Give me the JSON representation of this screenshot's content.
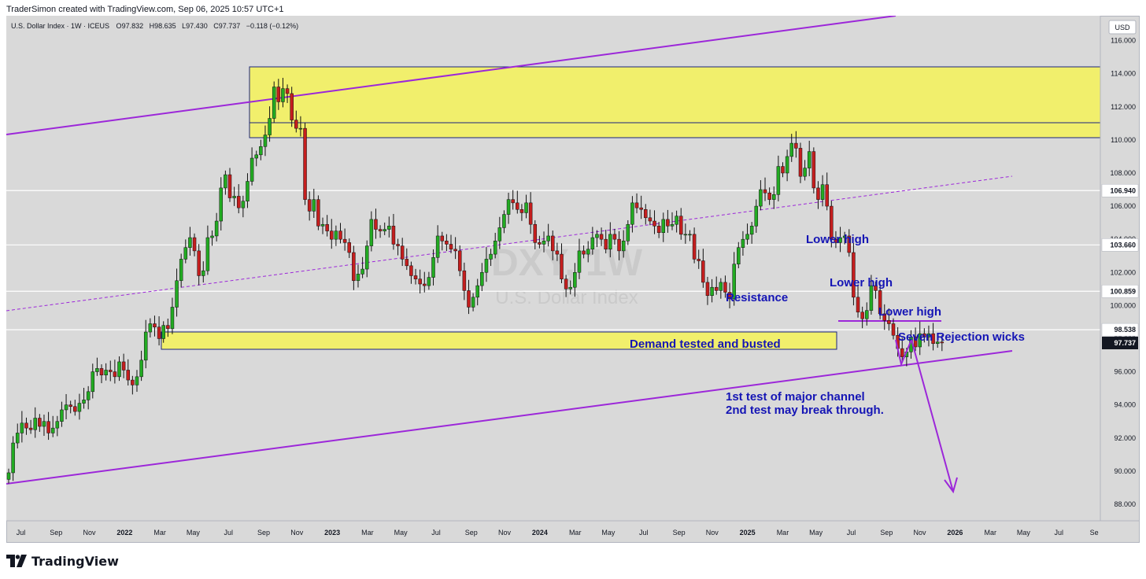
{
  "header": {
    "attribution": "TraderSimon created with TradingView.com, Sep 06, 2025 10:57 UTC+1"
  },
  "legend": {
    "title": "U.S. Dollar Index · 1W · ICEUS",
    "open_label": "O",
    "open": "97.832",
    "high_label": "H",
    "high": "98.635",
    "low_label": "L",
    "low": "97.430",
    "close_label": "C",
    "close": "97.737",
    "change": "−0.118 (−0.12%)"
  },
  "watermark": {
    "symbol": "DXY, 1W",
    "name": "U.S. Dollar Index"
  },
  "currency_badge": "USD",
  "footer": {
    "brand": "TradingView"
  },
  "colors": {
    "up": "#22ab22",
    "down": "#c41e1e",
    "channel": "#9c27d9",
    "zone_fill": "#f5f258",
    "zone_border": "#1a237e",
    "annotation_text": "#1515b5",
    "last_price_badge": "#131722"
  },
  "chart_data": {
    "type": "candlestick",
    "timeframe": "1W",
    "ylim": [
      87,
      117.5
    ],
    "y_ticks": [
      88,
      90,
      92,
      94,
      96,
      98,
      100,
      102,
      104,
      106,
      108,
      110,
      112,
      114,
      116
    ],
    "x_ticks": [
      {
        "t": 2021.5,
        "label": "Jul"
      },
      {
        "t": 2021.67,
        "label": "Sep"
      },
      {
        "t": 2021.83,
        "label": "Nov"
      },
      {
        "t": 2022.0,
        "label": "2022"
      },
      {
        "t": 2022.17,
        "label": "Mar"
      },
      {
        "t": 2022.33,
        "label": "May"
      },
      {
        "t": 2022.5,
        "label": "Jul"
      },
      {
        "t": 2022.67,
        "label": "Sep"
      },
      {
        "t": 2022.83,
        "label": "Nov"
      },
      {
        "t": 2023.0,
        "label": "2023"
      },
      {
        "t": 2023.17,
        "label": "Mar"
      },
      {
        "t": 2023.33,
        "label": "May"
      },
      {
        "t": 2023.5,
        "label": "Jul"
      },
      {
        "t": 2023.67,
        "label": "Sep"
      },
      {
        "t": 2023.83,
        "label": "Nov"
      },
      {
        "t": 2024.0,
        "label": "2024"
      },
      {
        "t": 2024.17,
        "label": "Mar"
      },
      {
        "t": 2024.33,
        "label": "May"
      },
      {
        "t": 2024.5,
        "label": "Jul"
      },
      {
        "t": 2024.67,
        "label": "Sep"
      },
      {
        "t": 2024.83,
        "label": "Nov"
      },
      {
        "t": 2025.0,
        "label": "2025"
      },
      {
        "t": 2025.17,
        "label": "Mar"
      },
      {
        "t": 2025.33,
        "label": "May"
      },
      {
        "t": 2025.5,
        "label": "Jul"
      },
      {
        "t": 2025.67,
        "label": "Sep"
      },
      {
        "t": 2025.83,
        "label": "Nov"
      },
      {
        "t": 2026.0,
        "label": "2026"
      },
      {
        "t": 2026.17,
        "label": "Mar"
      },
      {
        "t": 2026.33,
        "label": "May"
      },
      {
        "t": 2026.5,
        "label": "Jul"
      },
      {
        "t": 2026.67,
        "label": "Se"
      }
    ],
    "x_range": [
      2021.43,
      2026.7
    ],
    "closes": [
      89.9,
      91.7,
      92.3,
      92.9,
      92.6,
      92.5,
      93.2,
      92.7,
      93.0,
      92.3,
      92.6,
      93.0,
      93.7,
      94.0,
      93.9,
      93.6,
      94.1,
      94.3,
      94.8,
      96.0,
      96.2,
      95.8,
      96.1,
      96.0,
      95.7,
      96.6,
      96.1,
      95.5,
      95.2,
      95.7,
      96.7,
      98.4,
      98.9,
      98.7,
      98.0,
      98.8,
      98.6,
      99.9,
      101.5,
      102.8,
      103.5,
      104.1,
      103.3,
      101.8,
      102.1,
      104.1,
      104.2,
      105.1,
      107.1,
      107.9,
      106.5,
      106.6,
      105.9,
      106.3,
      107.5,
      108.9,
      109.1,
      109.6,
      110.3,
      111.3,
      113.2,
      112.3,
      113.1,
      112.8,
      111.2,
      110.7,
      110.7,
      106.4,
      105.7,
      106.4,
      104.8,
      104.9,
      104.5,
      104.0,
      104.5,
      104.0,
      103.8,
      103.2,
      101.5,
      101.9,
      102.2,
      103.6,
      105.2,
      104.6,
      104.5,
      104.6,
      104.8,
      103.7,
      103.6,
      102.8,
      102.4,
      101.8,
      101.6,
      101.3,
      101.2,
      101.7,
      102.9,
      104.2,
      103.9,
      103.7,
      103.4,
      103.3,
      102.1,
      100.9,
      99.9,
      100.5,
      101.2,
      102.0,
      102.8,
      103.1,
      103.9,
      104.7,
      105.5,
      106.4,
      106.2,
      105.8,
      105.6,
      106.2,
      104.9,
      103.8,
      103.7,
      103.9,
      104.2,
      103.3,
      103.1,
      101.6,
      101.0,
      101.1,
      102.0,
      103.3,
      103.1,
      103.4,
      104.1,
      104.3,
      104.0,
      103.4,
      104.3,
      104.0,
      103.3,
      103.9,
      104.9,
      106.2,
      105.9,
      105.8,
      105.3,
      105.1,
      104.8,
      104.4,
      105.2,
      104.8,
      104.9,
      105.4,
      104.3,
      104.3,
      104.3,
      102.8,
      102.7,
      101.4,
      100.6,
      101.1,
      100.9,
      101.4,
      100.8,
      100.4,
      102.5,
      103.5,
      104.0,
      104.3,
      104.8,
      106.0,
      107.0,
      106.8,
      106.4,
      106.7,
      108.4,
      108.0,
      109.0,
      109.8,
      109.5,
      107.8,
      108.3,
      109.3,
      107.1,
      106.4,
      107.3,
      106.0,
      104.0,
      103.8,
      104.1,
      104.2,
      103.2,
      100.5,
      99.6,
      99.2,
      99.7,
      101.2,
      100.9,
      99.5,
      99.1,
      98.9,
      98.2,
      97.4,
      96.9,
      97.2,
      98.1,
      97.5,
      98.3,
      98.1,
      98.3,
      97.7,
      97.8,
      97.74
    ]
  },
  "price_badges": [
    {
      "price": 106.94,
      "label": "106.940"
    },
    {
      "price": 103.66,
      "label": "103.660"
    },
    {
      "price": 100.859,
      "label": "100.859"
    },
    {
      "price": 98.538,
      "label": "98.538"
    }
  ],
  "last_price_label": "97.737",
  "annotations": {
    "lower_high_1": "Lower high",
    "lower_high_2": "Lower high",
    "lower_high_3": "Lower high",
    "resistance": "Resistance",
    "demand": "Demand tested and busted",
    "rejection": "Seven Rejection wicks",
    "channel_note_1": "1st test of major channel",
    "channel_note_2": "2nd test may break through."
  }
}
